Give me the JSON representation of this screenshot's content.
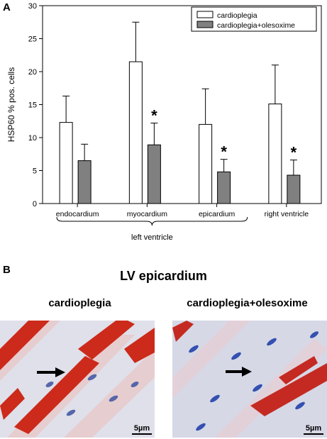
{
  "figure": {
    "panel_a_letter": "A",
    "panel_b_letter": "B",
    "panel_b_title": "LV epicardium",
    "image_left_caption": "cardioplegia",
    "image_right_caption": "cardioplegia+olesoxime",
    "scale_bar_left": "5µm",
    "scale_bar_right": "5µm",
    "group_label": "left ventricle"
  },
  "chart_data": {
    "type": "bar",
    "categories": [
      "endocardium",
      "myocardium",
      "epicardium",
      "right ventricle"
    ],
    "ylabel": "HSP60 % pos. cells",
    "xlabel": "",
    "ylim": [
      0,
      30
    ],
    "yticks": [
      0,
      5,
      10,
      15,
      20,
      25,
      30
    ],
    "legend_position": "top-right",
    "series": [
      {
        "name": "cardioplegia",
        "color": "#ffffff",
        "values": [
          12.3,
          21.5,
          12.0,
          15.1
        ],
        "errors": [
          4.0,
          6.0,
          5.4,
          5.9
        ],
        "significance": [
          "",
          "",
          "",
          ""
        ]
      },
      {
        "name": "cardioplegia+olesoxime",
        "color": "#808080",
        "values": [
          6.5,
          8.9,
          4.8,
          4.3
        ],
        "errors": [
          2.5,
          3.3,
          1.9,
          2.3
        ],
        "significance": [
          "",
          "*",
          "*",
          "*"
        ]
      }
    ]
  }
}
